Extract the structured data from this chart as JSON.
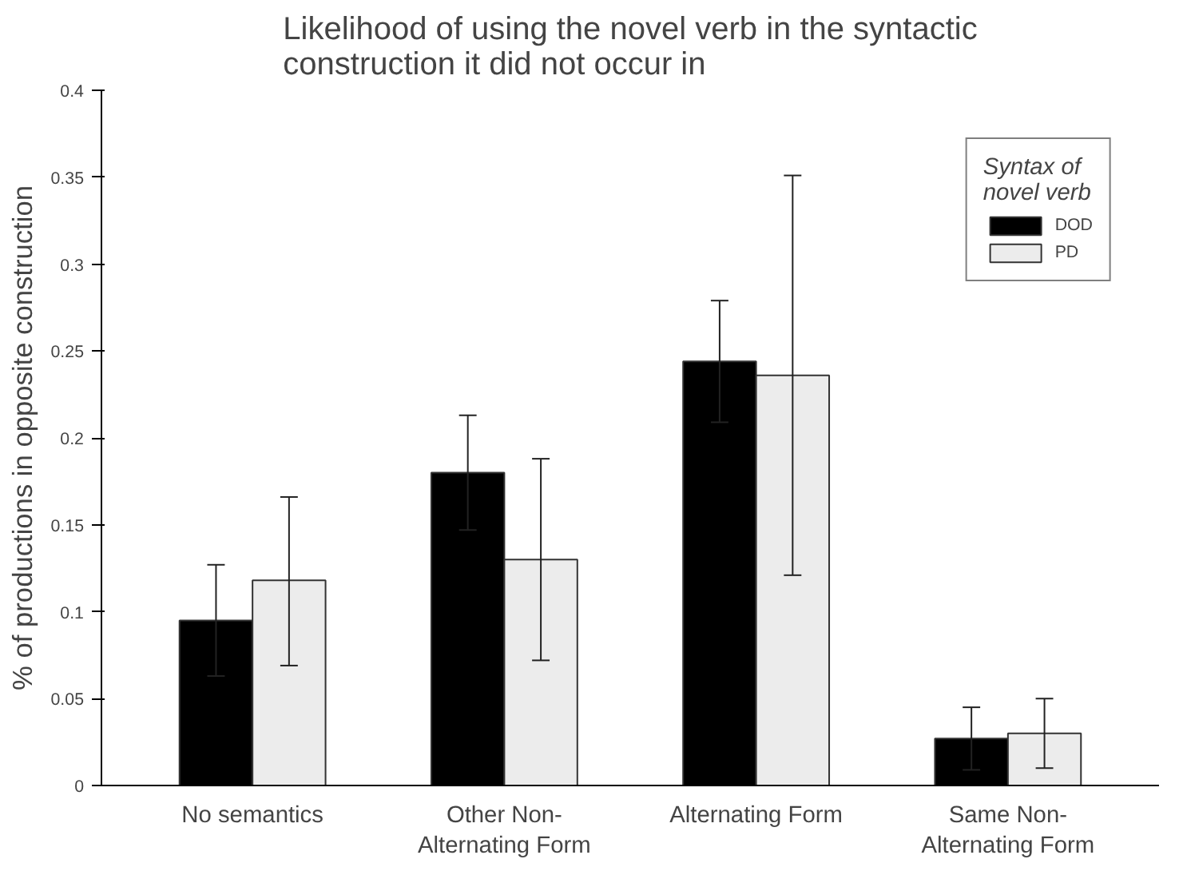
{
  "chart_data": {
    "type": "bar",
    "title": "Likelihood of using the novel verb in the syntactic\nconstruction it did not occur in",
    "ylabel": "% of productions in opposite construction",
    "legend_title": "Syntax of\nnovel verb",
    "categories": [
      "No semantics",
      "Other Non-\nAlternating Form",
      "Alternating Form",
      "Same Non-\nAlternating Form"
    ],
    "series": [
      {
        "name": "DOD",
        "color": "#000000",
        "values": [
          0.095,
          0.18,
          0.244,
          0.027
        ],
        "errors": [
          0.032,
          0.033,
          0.035,
          0.018
        ]
      },
      {
        "name": "PD",
        "color": "#ececec",
        "values": [
          0.118,
          0.13,
          0.236,
          0.03
        ],
        "errors": [
          [
            0.069,
            0.166
          ],
          [
            0.072,
            0.188
          ],
          [
            0.121,
            0.351
          ],
          [
            0.01,
            0.05
          ]
        ]
      }
    ],
    "ylim": [
      0,
      0.4
    ],
    "yticks": [
      0,
      0.05,
      0.1,
      0.15,
      0.2,
      0.25,
      0.3,
      0.35,
      0.4
    ],
    "grid": false,
    "legend": "top right"
  }
}
